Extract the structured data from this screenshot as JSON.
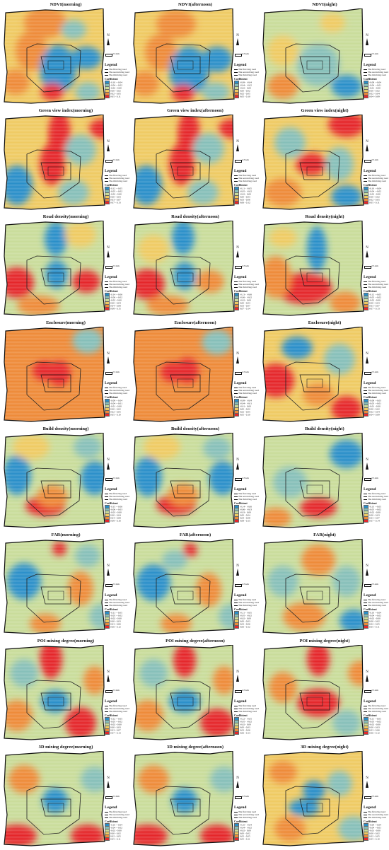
{
  "panel_titles": [
    "NDVI(morning)",
    "NDVI(afternoon)",
    "NDVI(night)",
    "Green view index(morning)",
    "Green view index(afternoon)",
    "Green view index(night)",
    "Road density(morning)",
    "Road density(afternoon)",
    "Road density(night)",
    "Enclosure(morning)",
    "Enclosure(afternoon)",
    "Enclosure(night)",
    "Build density(morning)",
    "Build density(afternoon)",
    "Build density(night)",
    "FAR(morning)",
    "FAR(afternoon)",
    "FAR(night)",
    "POI mixing degree(morning)",
    "POI mixing degree(afternoon)",
    "POI mixing degree(night)",
    "3D mixing degree(morning)",
    "3D mixing degree(afternoon)",
    "3D mixing degree(night)"
  ],
  "map_common": {
    "north_label": "N",
    "scale_label": "2.5 km",
    "legend_title": "Legend",
    "roads": [
      "The first ring road",
      "The second ring road",
      "The third ring road"
    ],
    "coefficient_label": "Coefficient"
  },
  "colors": {
    "ring_lines": "#222222",
    "class_colors": [
      "#2a8fc9",
      "#86bfb9",
      "#c9dc9a",
      "#efca62",
      "#ee8a38",
      "#e5262b"
    ]
  },
  "legend_classes": [
    [
      "-0.10 - -0.04",
      "-0.04 - -0.02",
      "-0.02 - 0.00",
      "0.00 - 0.02",
      "0.02 - 0.05",
      "0.05 - 0.11"
    ],
    [
      "-0.09 - -0.04",
      "-0.04 - -0.02",
      "-0.02 - 0.00",
      "0.00 - 0.02",
      "0.02 - 0.05",
      "0.05 - 0.10"
    ],
    [
      "-0.08 - -0.04",
      "-0.04 - -0.01",
      "-0.01 - 0.00",
      "0.00 - 0.02",
      "0.02 - 0.04",
      "0.04 - 0.09"
    ],
    [
      "-0.12 - -0.05",
      "-0.05 - -0.02",
      "-0.02 - 0.00",
      "0.00 - 0.03",
      "0.03 - 0.07",
      "0.07 - 0.13"
    ],
    [
      "-0.11 - -0.05",
      "-0.05 - -0.02",
      "-0.02 - 0.00",
      "0.00 - 0.03",
      "0.03 - 0.06",
      "0.06 - 0.12"
    ],
    [
      "-0.10 - -0.04",
      "-0.04 - -0.02",
      "-0.02 - 0.00",
      "0.00 - 0.02",
      "0.02 - 0.05",
      "0.05 - 0.11"
    ],
    [
      "-0.14 - -0.06",
      "-0.06 - -0.02",
      "-0.02 - 0.00",
      "0.00 - 0.04",
      "0.04 - 0.08",
      "0.08 - 0.15"
    ],
    [
      "-0.13 - -0.06",
      "-0.06 - -0.02",
      "-0.02 - 0.00",
      "0.00 - 0.03",
      "0.03 - 0.07",
      "0.07 - 0.14"
    ],
    [
      "-0.12 - -0.05",
      "-0.05 - -0.02",
      "-0.02 - 0.00",
      "0.00 - 0.03",
      "0.03 - 0.07",
      "0.07 - 0.13"
    ],
    [
      "-0.09 - -0.04",
      "-0.04 - -0.01",
      "-0.01 - 0.00",
      "0.00 - 0.02",
      "0.02 - 0.05",
      "0.05 - 0.10"
    ],
    [
      "-0.09 - -0.04",
      "-0.04 - -0.01",
      "-0.01 - 0.00",
      "0.00 - 0.02",
      "0.02 - 0.05",
      "0.05 - 0.10"
    ],
    [
      "-0.08 - -0.03",
      "-0.03 - -0.01",
      "-0.01 - 0.00",
      "0.00 - 0.02",
      "0.02 - 0.04",
      "0.04 - 0.09"
    ],
    [
      "-0.15 - -0.06",
      "-0.06 - -0.03",
      "-0.03 - 0.00",
      "0.00 - 0.04",
      "0.04 - 0.08",
      "0.08 - 0.16"
    ],
    [
      "-0.14 - -0.06",
      "-0.06 - -0.03",
      "-0.03 - 0.00",
      "0.00 - 0.04",
      "0.04 - 0.08",
      "0.08 - 0.15"
    ],
    [
      "-0.13 - -0.05",
      "-0.05 - -0.02",
      "-0.02 - 0.00",
      "0.00 - 0.03",
      "0.03 - 0.07",
      "0.07 - 0.14"
    ],
    [
      "-0.11 - -0.05",
      "-0.05 - -0.02",
      "-0.02 - 0.00",
      "0.00 - 0.03",
      "0.03 - 0.06",
      "0.06 - 0.12"
    ],
    [
      "-0.11 - -0.05",
      "-0.05 - -0.02",
      "-0.02 - 0.00",
      "0.00 - 0.03",
      "0.03 - 0.06",
      "0.06 - 0.12"
    ],
    [
      "-0.10 - -0.04",
      "-0.04 - -0.02",
      "-0.02 - 0.00",
      "0.00 - 0.02",
      "0.02 - 0.05",
      "0.05 - 0.11"
    ],
    [
      "-0.12 - -0.05",
      "-0.05 - -0.02",
      "-0.02 - 0.00",
      "0.00 - 0.03",
      "0.03 - 0.07",
      "0.07 - 0.13"
    ],
    [
      "-0.12 - -0.05",
      "-0.05 - -0.02",
      "-0.02 - 0.00",
      "0.00 - 0.03",
      "0.03 - 0.06",
      "0.06 - 0.13"
    ],
    [
      "-0.11 - -0.05",
      "-0.05 - -0.02",
      "-0.02 - 0.00",
      "0.00 - 0.03",
      "0.03 - 0.06",
      "0.06 - 0.12"
    ],
    [
      "-0.10 - -0.04",
      "-0.04 - -0.02",
      "-0.02 - 0.00",
      "0.00 - 0.02",
      "0.02 - 0.05",
      "0.05 - 0.11"
    ],
    [
      "-0.10 - -0.04",
      "-0.04 - -0.02",
      "-0.02 - 0.00",
      "0.00 - 0.02",
      "0.02 - 0.05",
      "0.05 - 0.11"
    ],
    [
      "-0.09 - -0.04",
      "-0.04 - -0.01",
      "-0.01 - 0.00",
      "0.00 - 0.02",
      "0.02 - 0.05",
      "0.05 - 0.10"
    ]
  ]
}
